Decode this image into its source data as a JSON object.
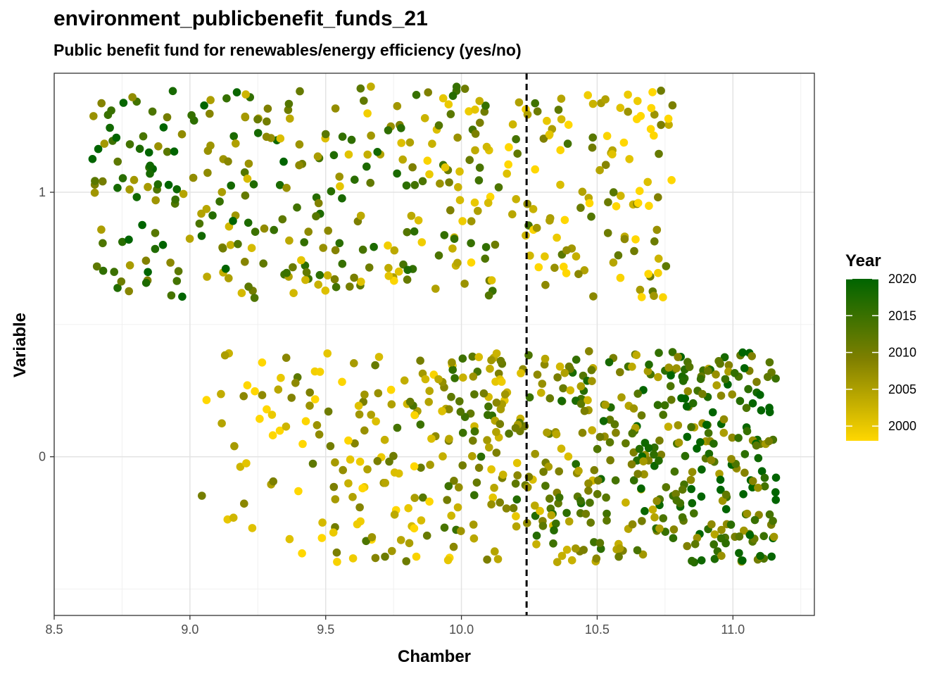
{
  "chart_data": {
    "type": "scatter",
    "title": "environment_publicbenefit_funds_21",
    "subtitle": "Public benefit fund for renewables/energy efficiency (yes/no)",
    "xlabel": "Chamber",
    "ylabel": "Variable",
    "xlim": [
      8.5,
      11.3
    ],
    "ylim": [
      -0.6,
      1.45
    ],
    "x_ticks": [
      "8.5",
      "9.0",
      "9.5",
      "10.0",
      "10.5",
      "11.0"
    ],
    "y_ticks": [
      "0",
      "1"
    ],
    "vline_x": 10.24,
    "grid": true,
    "legend": {
      "title": "Year",
      "position": "right",
      "type": "colorbar",
      "range": [
        1998,
        2020
      ],
      "breaks": [
        "2000",
        "2005",
        "2010",
        "2015",
        "2020"
      ],
      "color_low": "#FFD700",
      "color_mid": "#808000",
      "color_high": "#006400"
    },
    "groups": [
      {
        "y": 1,
        "jitter": 0.4,
        "x_min": 8.63,
        "x_max": 10.78,
        "n": 420,
        "year_range": [
          1998,
          2020
        ]
      },
      {
        "y": 0,
        "jitter": 0.4,
        "x_min": 9.04,
        "x_max": 11.16,
        "n": 620,
        "year_range": [
          1998,
          2020
        ]
      }
    ]
  }
}
